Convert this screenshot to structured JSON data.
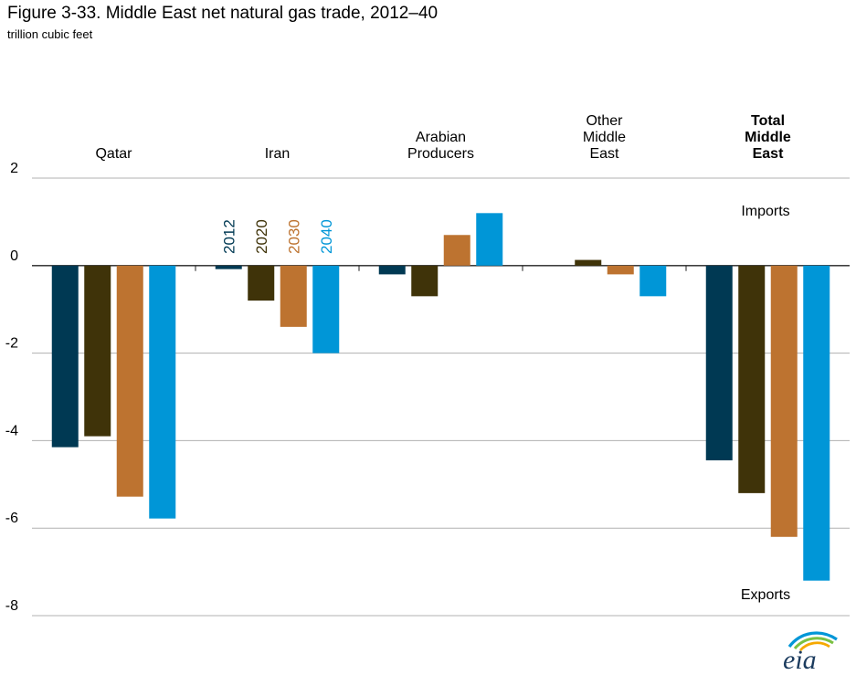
{
  "title": "Figure 3-33. Middle East net natural gas trade, 2012–40",
  "subtitle": "trillion cubic feet",
  "logo_text": "eia",
  "chart_data": {
    "type": "bar",
    "categories": [
      "Qatar",
      "Iran",
      "Arabian Producers",
      "Other Middle East",
      "Total Middle East"
    ],
    "category_lines": [
      [
        "Qatar"
      ],
      [
        "Iran"
      ],
      [
        "Arabian",
        "Producers"
      ],
      [
        "Other",
        "Middle",
        "East"
      ],
      [
        "Total",
        "Middle",
        "East"
      ]
    ],
    "category_bold": [
      false,
      false,
      false,
      false,
      true
    ],
    "series": [
      {
        "name": "2012",
        "color": "#003953",
        "values": [
          -4.15,
          -0.08,
          -0.2,
          0.0,
          -4.45
        ]
      },
      {
        "name": "2020",
        "color": "#3f3309",
        "values": [
          -3.9,
          -0.8,
          -0.7,
          0.13,
          -5.2
        ]
      },
      {
        "name": "2030",
        "color": "#bd7330",
        "values": [
          -5.28,
          -1.4,
          0.7,
          -0.2,
          -6.2
        ]
      },
      {
        "name": "2040",
        "color": "#0096d7",
        "values": [
          -5.78,
          -2.0,
          1.2,
          -0.7,
          -7.2
        ]
      }
    ],
    "ylim": [
      -8,
      2
    ],
    "yticks": [
      2,
      0,
      -2,
      -4,
      -6,
      -8
    ],
    "grid": true,
    "legend_placement": "vertical labels above Iran bars",
    "annotations": {
      "imports": "Imports",
      "exports": "Exports"
    }
  }
}
